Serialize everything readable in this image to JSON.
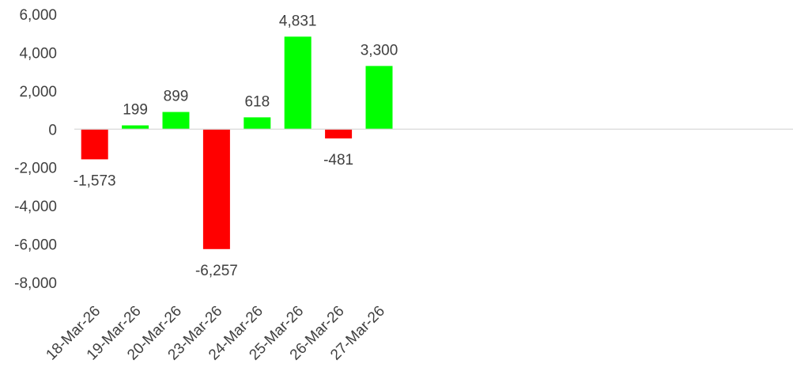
{
  "chart_data": {
    "type": "bar",
    "title": "",
    "xlabel": "",
    "ylabel": "",
    "categories": [
      "18-Mar-26",
      "19-Mar-26",
      "20-Mar-26",
      "23-Mar-26",
      "24-Mar-26",
      "25-Mar-26",
      "26-Mar-26",
      "27-Mar-26"
    ],
    "values": [
      -1573,
      199,
      899,
      -6257,
      618,
      4831,
      -481,
      3300
    ],
    "value_labels": [
      "-1,573",
      "199",
      "899",
      "-6,257",
      "618",
      "4,831",
      "-481",
      "3,300"
    ],
    "ylim": [
      -8000,
      6000
    ],
    "y_ticks": [
      6000,
      4000,
      2000,
      0,
      -2000,
      -4000,
      -6000,
      -8000
    ],
    "y_tick_labels": [
      "6,000",
      "4,000",
      "2,000",
      "0",
      "-2,000",
      "-4,000",
      "-6,000",
      "-8,000"
    ],
    "grid": false,
    "legend": "none",
    "colors": {
      "positive": "#00ff00",
      "negative": "#ff0000",
      "axis_line": "#d9d9d9",
      "text": "#404040"
    }
  }
}
